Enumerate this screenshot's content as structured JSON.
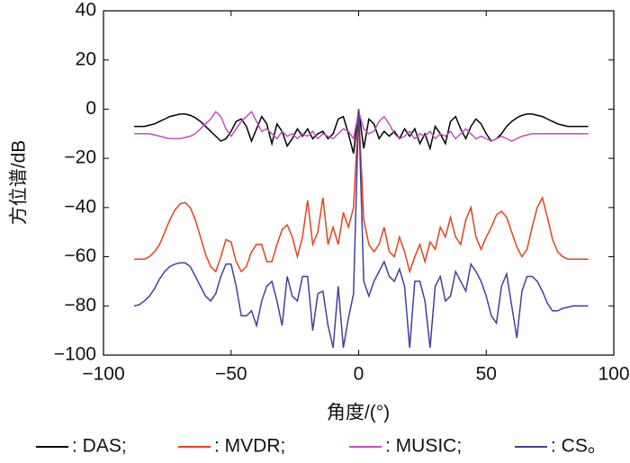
{
  "chart_data": {
    "type": "line",
    "xlabel": "角度/(°)",
    "ylabel": "方位谱/dB",
    "xlim": [
      -100,
      100
    ],
    "ylim": [
      -100,
      40
    ],
    "xticks": [
      {
        "value": -100,
        "label": "−100"
      },
      {
        "value": -50,
        "label": "−50"
      },
      0,
      50,
      100
    ],
    "yticks": [
      {
        "value": -100,
        "label": "−100"
      },
      {
        "value": -80,
        "label": "−80"
      },
      {
        "value": -60,
        "label": "−60"
      },
      {
        "value": -40,
        "label": "−40"
      },
      {
        "value": -20,
        "label": "−20"
      },
      0,
      20,
      40
    ],
    "x": [
      -88,
      -86,
      -84,
      -82,
      -80,
      -78,
      -76,
      -74,
      -72,
      -70,
      -68,
      -66,
      -64,
      -62,
      -60,
      -58,
      -56,
      -54,
      -52,
      -50,
      -48,
      -46,
      -44,
      -42,
      -40,
      -38,
      -36,
      -34,
      -32,
      -30,
      -28,
      -26,
      -24,
      -22,
      -20,
      -18,
      -16,
      -14,
      -12,
      -10,
      -8,
      -6,
      -4,
      -2,
      0,
      2,
      4,
      6,
      8,
      10,
      12,
      14,
      16,
      18,
      20,
      22,
      24,
      26,
      28,
      30,
      32,
      34,
      36,
      38,
      40,
      42,
      44,
      46,
      48,
      50,
      52,
      54,
      56,
      58,
      60,
      62,
      64,
      66,
      68,
      70,
      72,
      74,
      76,
      78,
      80,
      82,
      84,
      86,
      88,
      90
    ],
    "series": [
      {
        "name": ": DAS;",
        "color": "#000000",
        "values": [
          -7,
          -7,
          -7,
          -6.5,
          -6,
          -5,
          -4,
          -3,
          -2.5,
          -2,
          -2,
          -2.5,
          -3.5,
          -5,
          -7,
          -9,
          -11,
          -13,
          -12,
          -9,
          -5,
          -4,
          -7,
          -13,
          -8,
          -3,
          -6,
          -14,
          -6,
          -9,
          -15,
          -12,
          -8,
          -11,
          -8,
          -12,
          -10,
          -9,
          -12,
          -10,
          -4,
          -3,
          -10,
          -18,
          0,
          -16,
          -4,
          -6,
          -12,
          -9,
          -11,
          -9,
          -12,
          -8,
          -11,
          -8,
          -14,
          -10,
          -16,
          -7,
          -10,
          -14,
          -5,
          -3,
          -8,
          -12,
          -7,
          -4,
          -6,
          -10,
          -13,
          -12,
          -10,
          -7,
          -5,
          -3.5,
          -2.5,
          -2,
          -2,
          -2.5,
          -3,
          -4,
          -5,
          -6,
          -6.5,
          -7,
          -7,
          -7,
          -7,
          -7
        ]
      },
      {
        "name": ": MVDR;",
        "color": "#e8401c",
        "values": [
          -61,
          -61,
          -61,
          -60,
          -58,
          -55,
          -50,
          -45,
          -41,
          -38.5,
          -38,
          -40,
          -45,
          -52,
          -59,
          -64,
          -66,
          -60,
          -53,
          -54,
          -62,
          -66,
          -64,
          -58,
          -55,
          -55,
          -62,
          -62,
          -55,
          -49,
          -47,
          -52,
          -60,
          -52,
          -37,
          -55,
          -50,
          -36,
          -55,
          -48,
          -55,
          -42,
          -48,
          -40,
          0,
          -45,
          -55,
          -58,
          -55,
          -48,
          -58,
          -60,
          -52,
          -58,
          -66,
          -60,
          -55,
          -62,
          -54,
          -57,
          -48,
          -52,
          -44,
          -52,
          -55,
          -45,
          -40,
          -52,
          -57,
          -52,
          -48,
          -43,
          -41.5,
          -44,
          -50,
          -56,
          -60,
          -57,
          -48,
          -40,
          -36,
          -44,
          -53,
          -58,
          -60,
          -61,
          -61,
          -61,
          -61,
          -61
        ]
      },
      {
        "name": ": MUSIC;",
        "color": "#c050c0",
        "values": [
          -10,
          -10,
          -10,
          -10,
          -10.5,
          -11,
          -11.5,
          -12,
          -12,
          -12,
          -11.5,
          -11,
          -10,
          -8,
          -6,
          -4,
          -1,
          -3,
          -8,
          -11,
          -8,
          -5,
          -3,
          -1,
          -5,
          -9,
          -8,
          -10,
          -12,
          -9,
          -11,
          -10,
          -12,
          -10,
          -11,
          -9,
          -12,
          -10,
          -11,
          -12,
          -10,
          -8,
          -9,
          -12,
          -1,
          -8,
          -10,
          -9,
          -5,
          -3,
          -6,
          -10,
          -12,
          -11,
          -9,
          -12,
          -10,
          -11,
          -9,
          -12,
          -10,
          -11,
          -9,
          -12,
          -10,
          -8,
          -10,
          -12,
          -11,
          -12,
          -13,
          -12,
          -11,
          -12,
          -13,
          -12,
          -11,
          -10.5,
          -10,
          -10,
          -10,
          -10,
          -10,
          -10,
          -10,
          -10,
          -10,
          -10,
          -10,
          -10
        ]
      },
      {
        "name": ": CS。",
        "color": "#4040a0",
        "values": [
          -80,
          -79.5,
          -78,
          -76,
          -73,
          -69,
          -66,
          -64,
          -63,
          -62.5,
          -62.5,
          -64,
          -68,
          -72,
          -76,
          -78,
          -75,
          -68,
          -63,
          -63,
          -72,
          -84,
          -84,
          -82,
          -88,
          -78,
          -72,
          -70,
          -78,
          -88,
          -68,
          -76,
          -78,
          -68,
          -68,
          -90,
          -75,
          -74,
          -88,
          -97,
          -72,
          -97,
          -85,
          -75,
          0,
          -70,
          -76,
          -70,
          -66,
          -62,
          -68,
          -70,
          -65,
          -72,
          -97,
          -70,
          -70,
          -78,
          -97,
          -72,
          -68,
          -78,
          -76,
          -66,
          -70,
          -74,
          -63,
          -66,
          -70,
          -76,
          -84,
          -87,
          -72,
          -67,
          -80,
          -93,
          -74,
          -68,
          -68,
          -70,
          -74,
          -79,
          -82,
          -82,
          -81,
          -80.5,
          -80,
          -80,
          -80,
          -80
        ]
      }
    ]
  }
}
